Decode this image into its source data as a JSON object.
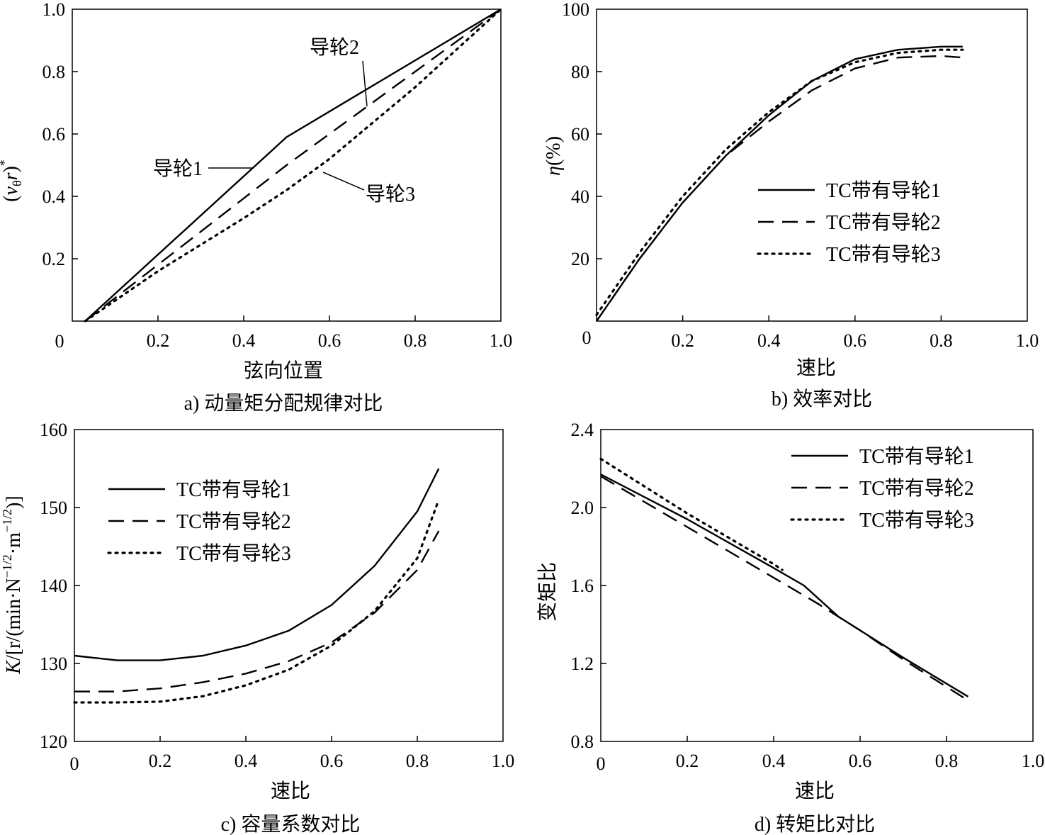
{
  "chart_data": [
    {
      "id": "a",
      "type": "line",
      "caption": "a) 动量矩分配规律对比",
      "xlabel": "弦向位置",
      "ylabel": "(vθr)*",
      "xlim": [
        0,
        1.0
      ],
      "ylim": [
        0,
        1.0
      ],
      "xticks": [
        "0",
        "0.2",
        "0.4",
        "0.6",
        "0.8",
        "1.0"
      ],
      "yticks": [
        "0.2",
        "0.4",
        "0.6",
        "0.8",
        "1.0"
      ],
      "grid": false,
      "series": [
        {
          "name": "导轮1",
          "style": "solid",
          "x": [
            0.03,
            0.5,
            1.0
          ],
          "y": [
            0.0,
            0.59,
            1.0
          ]
        },
        {
          "name": "导轮2",
          "style": "dashed",
          "x": [
            0.03,
            0.5,
            1.0
          ],
          "y": [
            0.0,
            0.5,
            1.0
          ]
        },
        {
          "name": "导轮3",
          "style": "dotted",
          "x": [
            0.03,
            0.2,
            0.4,
            0.5,
            0.6,
            0.8,
            1.0
          ],
          "y": [
            0.0,
            0.16,
            0.33,
            0.42,
            0.52,
            0.75,
            1.0
          ]
        }
      ],
      "annotations": [
        "导轮1",
        "导轮2",
        "导轮3"
      ]
    },
    {
      "id": "b",
      "type": "line",
      "caption": "b) 效率对比",
      "xlabel": "速比",
      "ylabel": "η(%)",
      "xlim": [
        0,
        1.0
      ],
      "ylim": [
        0,
        100
      ],
      "xticks": [
        "0",
        "0.2",
        "0.4",
        "0.6",
        "0.8",
        "1.0"
      ],
      "yticks": [
        "20",
        "40",
        "60",
        "80",
        "100"
      ],
      "grid": false,
      "legend": "center-right",
      "series": [
        {
          "name": "TC带有导轮1",
          "style": "solid",
          "x": [
            0.0,
            0.1,
            0.2,
            0.3,
            0.4,
            0.5,
            0.6,
            0.7,
            0.8,
            0.85
          ],
          "y": [
            0,
            20,
            38,
            53,
            66,
            77,
            84,
            87,
            88,
            88
          ]
        },
        {
          "name": "TC带有导轮2",
          "style": "dashed",
          "x": [
            0.0,
            0.1,
            0.2,
            0.3,
            0.4,
            0.5,
            0.6,
            0.7,
            0.8,
            0.85
          ],
          "y": [
            0,
            20,
            38,
            53,
            64,
            74,
            81,
            84.5,
            85,
            84.5
          ]
        },
        {
          "name": "TC带有导轮3",
          "style": "dotted",
          "x": [
            0.0,
            0.1,
            0.2,
            0.3,
            0.4,
            0.5,
            0.6,
            0.7,
            0.8,
            0.85
          ],
          "y": [
            2,
            22,
            40,
            55,
            67,
            77,
            83,
            86,
            87,
            87
          ]
        }
      ]
    },
    {
      "id": "c",
      "type": "line",
      "caption": "c) 容量系数对比",
      "xlabel": "速比",
      "ylabel": "K/[r/(min·N−1/2·m−1/2)]",
      "xlim": [
        0,
        1.0
      ],
      "ylim": [
        120,
        160
      ],
      "xticks": [
        "0",
        "0.2",
        "0.4",
        "0.6",
        "0.8",
        "1.0"
      ],
      "yticks": [
        "120",
        "130",
        "140",
        "150",
        "160"
      ],
      "grid": false,
      "legend": "top-left",
      "series": [
        {
          "name": "TC带有导轮1",
          "style": "solid",
          "x": [
            0.0,
            0.1,
            0.2,
            0.3,
            0.4,
            0.5,
            0.6,
            0.7,
            0.8,
            0.85
          ],
          "y": [
            131,
            130.4,
            130.4,
            131,
            132.3,
            134.2,
            137.5,
            142.5,
            149.5,
            155
          ]
        },
        {
          "name": "TC带有导轮2",
          "style": "dashed",
          "x": [
            0.0,
            0.1,
            0.2,
            0.3,
            0.4,
            0.5,
            0.6,
            0.7,
            0.8,
            0.85
          ],
          "y": [
            126.4,
            126.4,
            126.8,
            127.6,
            128.7,
            130.3,
            132.7,
            136.5,
            142,
            147
          ]
        },
        {
          "name": "TC带有导轮3",
          "style": "dotted",
          "x": [
            0.0,
            0.1,
            0.2,
            0.3,
            0.4,
            0.5,
            0.6,
            0.7,
            0.8,
            0.85
          ],
          "y": [
            125,
            125,
            125.1,
            125.8,
            127.2,
            129.2,
            132.3,
            136.7,
            143.5,
            151
          ]
        }
      ]
    },
    {
      "id": "d",
      "type": "line",
      "caption": "d) 转矩比对比",
      "xlabel": "速比",
      "ylabel": "变矩比",
      "xlim": [
        0,
        1.0
      ],
      "ylim": [
        0.8,
        2.4
      ],
      "xticks": [
        "0",
        "0.2",
        "0.4",
        "0.6",
        "0.8",
        "1.0"
      ],
      "yticks": [
        "0.8",
        "1.2",
        "1.6",
        "2.0",
        "2.4"
      ],
      "grid": false,
      "legend": "top-right",
      "series": [
        {
          "name": "TC带有导轮1",
          "style": "solid",
          "x": [
            0.0,
            0.2,
            0.4,
            0.47,
            0.55,
            0.7,
            0.85
          ],
          "y": [
            2.17,
            1.94,
            1.69,
            1.6,
            1.44,
            1.23,
            1.03
          ]
        },
        {
          "name": "TC带有导轮2",
          "style": "dashed",
          "x": [
            0.0,
            0.2,
            0.4,
            0.5,
            0.6,
            0.7,
            0.85
          ],
          "y": [
            2.16,
            1.9,
            1.64,
            1.51,
            1.37,
            1.22,
            1.01
          ]
        },
        {
          "name": "TC带有导轮3",
          "style": "dotted",
          "x": [
            0.0,
            0.2,
            0.4,
            0.42
          ],
          "y": [
            2.25,
            1.97,
            1.71,
            1.68
          ]
        }
      ]
    }
  ],
  "styles": {
    "line_color": "#000000",
    "background": "#ffffff"
  }
}
